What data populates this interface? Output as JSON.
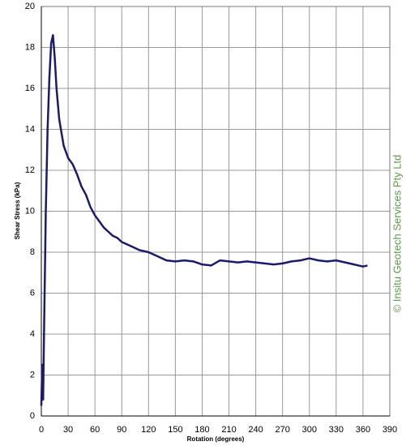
{
  "chart_data": {
    "type": "line",
    "x_label": "Rotation (degrees)",
    "y_label": "Shear Stress (kPa)",
    "annotation": "© Insitu Geotech Services Pty Ltd",
    "x": [
      0,
      1,
      2,
      3,
      5,
      7,
      9,
      11,
      13,
      15,
      17,
      20,
      25,
      30,
      35,
      40,
      45,
      50,
      55,
      60,
      65,
      70,
      75,
      80,
      85,
      90,
      95,
      100,
      110,
      120,
      130,
      140,
      150,
      160,
      170,
      180,
      190,
      200,
      210,
      220,
      230,
      240,
      250,
      260,
      270,
      280,
      290,
      300,
      310,
      320,
      330,
      340,
      350,
      360,
      365
    ],
    "series": [
      {
        "name": "Shear Stress",
        "color": "#1a1a6e",
        "values": [
          0.5,
          2.5,
          0.8,
          4,
          10,
          14,
          16.5,
          18.2,
          18.6,
          17.5,
          16,
          14.5,
          13.2,
          12.6,
          12.3,
          11.8,
          11.2,
          10.8,
          10.2,
          9.8,
          9.5,
          9.2,
          9.0,
          8.8,
          8.7,
          8.5,
          8.4,
          8.3,
          8.1,
          8.0,
          7.8,
          7.6,
          7.55,
          7.6,
          7.55,
          7.4,
          7.35,
          7.6,
          7.55,
          7.5,
          7.55,
          7.5,
          7.45,
          7.4,
          7.45,
          7.55,
          7.6,
          7.7,
          7.6,
          7.55,
          7.6,
          7.5,
          7.4,
          7.3,
          7.35
        ]
      }
    ],
    "xlim": [
      0,
      390
    ],
    "xticks": [
      0,
      30,
      60,
      90,
      120,
      150,
      180,
      210,
      240,
      270,
      300,
      330,
      360,
      390
    ],
    "ylim": [
      0,
      20
    ],
    "yticks": [
      0,
      2,
      4,
      6,
      8,
      10,
      12,
      14,
      16,
      18,
      20
    ],
    "grid": true
  }
}
